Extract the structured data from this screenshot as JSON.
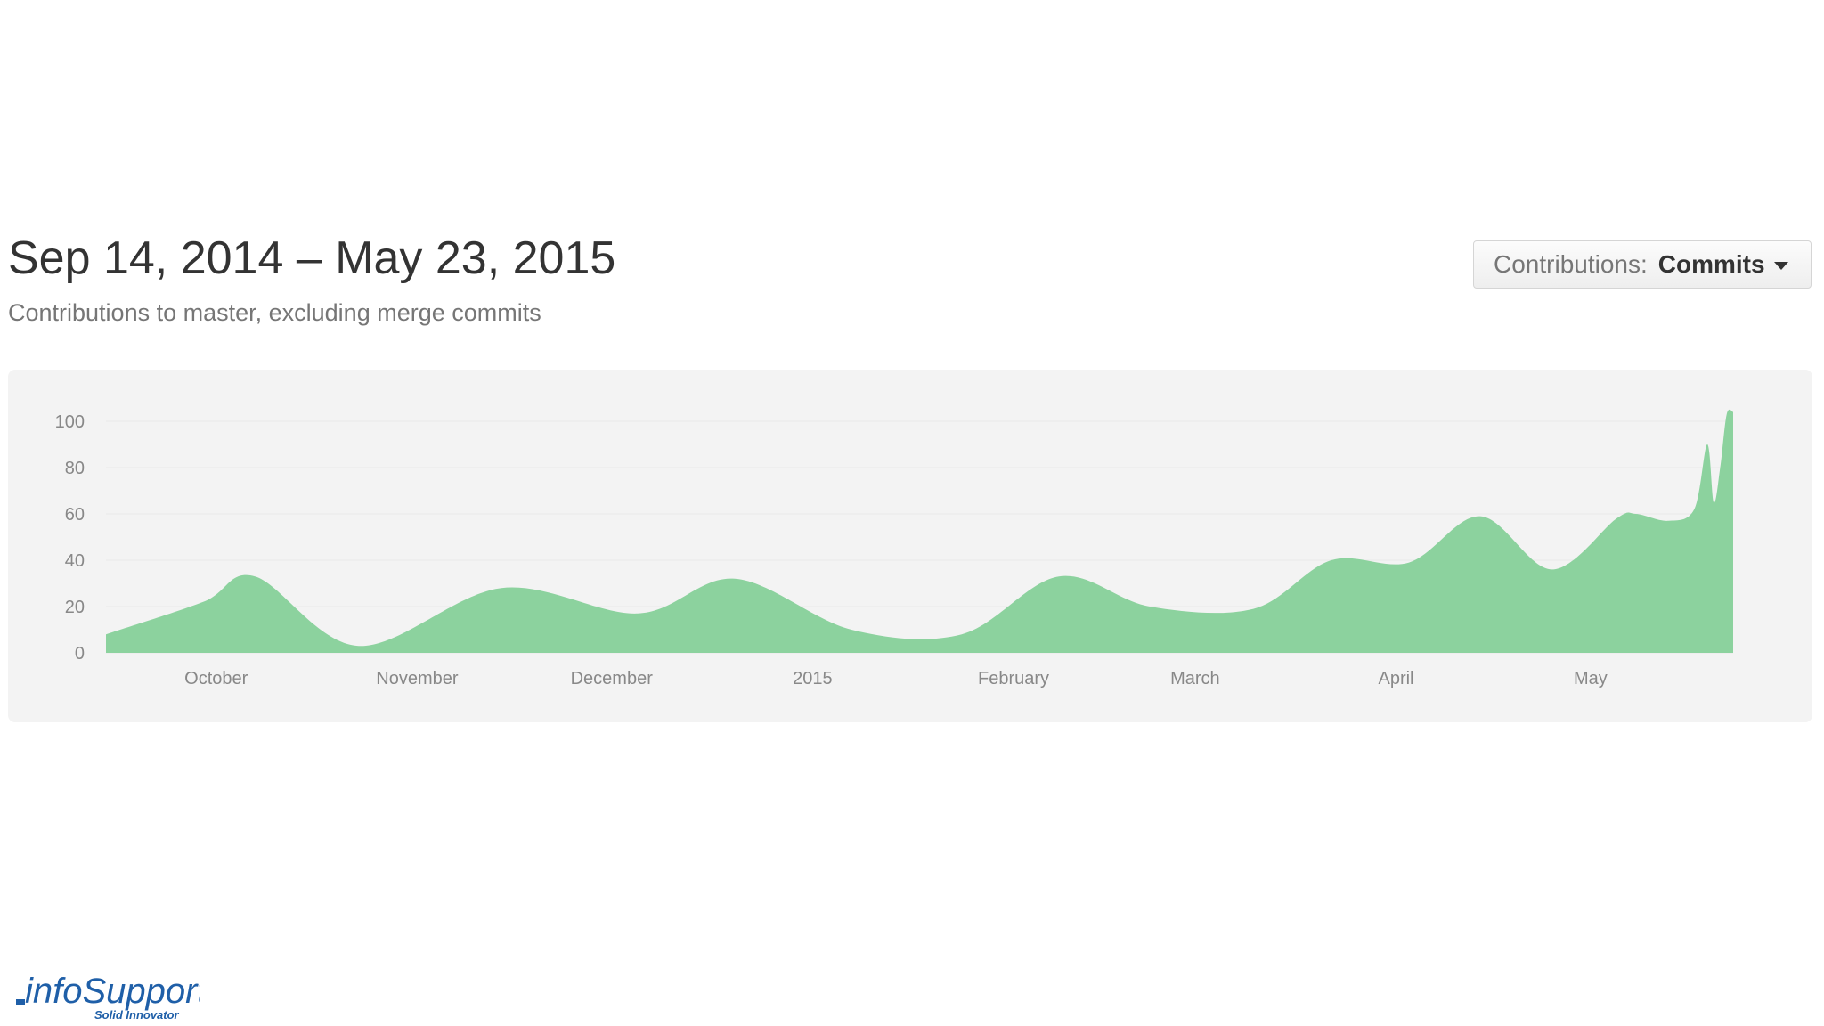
{
  "header": {
    "title": "Sep 14, 2014 – May 23, 2015",
    "subtitle": "Contributions to master, excluding merge commits"
  },
  "contributions_select": {
    "label": "Contributions:",
    "value": "Commits"
  },
  "logo": {
    "text": "infoSupport",
    "tagline": "Solid Innovator",
    "brand_color": "#1f5fa8"
  },
  "colors": {
    "area_fill": "#8cd29e",
    "panel_bg": "#f3f3f3",
    "tick_text": "#888888"
  },
  "chart_data": {
    "type": "area",
    "title": "",
    "xlabel": "",
    "ylabel": "",
    "ylim": [
      0,
      100
    ],
    "yticks": [
      0,
      20,
      40,
      60,
      80,
      100
    ],
    "grid": true,
    "x_range": [
      "2014-09-14",
      "2015-05-23"
    ],
    "x_ticks": [
      {
        "date": "2014-10-01",
        "label": "October"
      },
      {
        "date": "2014-11-01",
        "label": "November"
      },
      {
        "date": "2014-12-01",
        "label": "December"
      },
      {
        "date": "2015-01-01",
        "label": "2015"
      },
      {
        "date": "2015-02-01",
        "label": "February"
      },
      {
        "date": "2015-03-01",
        "label": "March"
      },
      {
        "date": "2015-04-01",
        "label": "April"
      },
      {
        "date": "2015-05-01",
        "label": "May"
      }
    ],
    "series": [
      {
        "color": "#8cd29e",
        "points": [
          [
            "2014-09-14",
            8
          ],
          [
            "2014-09-29",
            22
          ],
          [
            "2014-10-07",
            33
          ],
          [
            "2014-10-23",
            3
          ],
          [
            "2014-11-14",
            28
          ],
          [
            "2014-12-05",
            17
          ],
          [
            "2014-12-20",
            32
          ],
          [
            "2015-01-07",
            10
          ],
          [
            "2015-01-24",
            8
          ],
          [
            "2015-02-08",
            33
          ],
          [
            "2015-02-22",
            20
          ],
          [
            "2015-03-10",
            19
          ],
          [
            "2015-03-22",
            40
          ],
          [
            "2015-04-03",
            39
          ],
          [
            "2015-04-14",
            59
          ],
          [
            "2015-04-25",
            36
          ],
          [
            "2015-05-05",
            58
          ],
          [
            "2015-05-08",
            60
          ],
          [
            "2015-05-13",
            57
          ],
          [
            "2015-05-17",
            62
          ],
          [
            "2015-05-19",
            90
          ],
          [
            "2015-05-20",
            65
          ],
          [
            "2015-05-21",
            80
          ],
          [
            "2015-05-22",
            103
          ],
          [
            "2015-05-23",
            104
          ]
        ]
      }
    ]
  }
}
